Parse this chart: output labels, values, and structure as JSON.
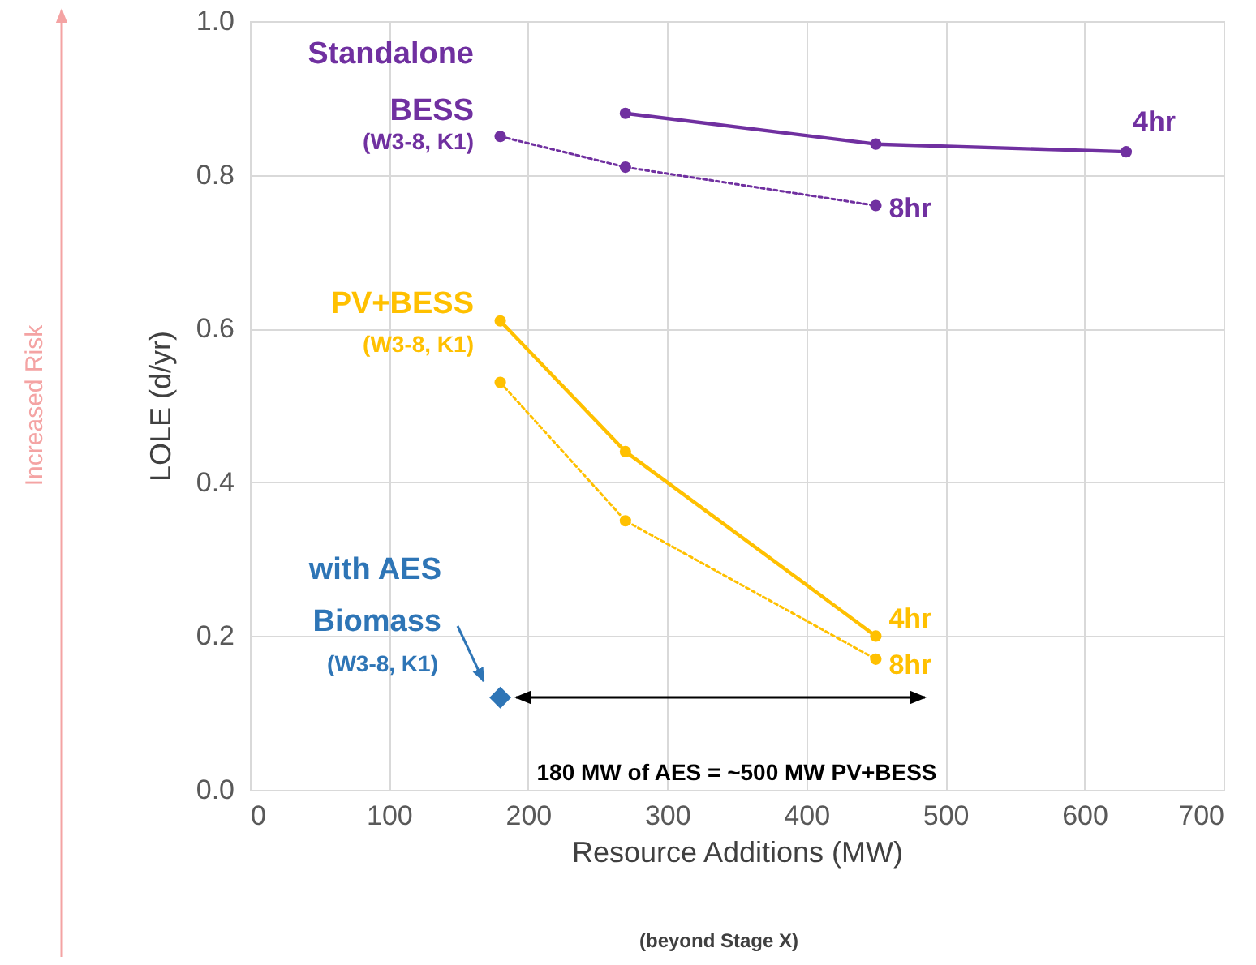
{
  "chart_data": {
    "type": "line",
    "xlabel": "Resource Additions (MW)",
    "ylabel": "LOLE (d/yr)",
    "xlim": [
      0,
      700
    ],
    "xticks": [
      0,
      100,
      200,
      300,
      400,
      500,
      600,
      700
    ],
    "ylim": [
      0,
      1
    ],
    "yticks": [
      {
        "value": 0,
        "label": "0.0"
      },
      {
        "value": 0.2,
        "label": "0.2"
      },
      {
        "value": 0.4,
        "label": "0.4"
      },
      {
        "value": 0.6,
        "label": "0.6"
      },
      {
        "value": 0.8,
        "label": "0.8"
      },
      {
        "value": 1,
        "label": "1.0"
      }
    ],
    "grid": true,
    "marker": "circle",
    "series": [
      {
        "name": "4hr",
        "color": "#7030a0",
        "x": [
          270,
          450,
          630
        ],
        "values": [
          0.88,
          0.84,
          0.83
        ],
        "line_style": "solid"
      },
      {
        "name": "8hr",
        "color": "#7030a0",
        "x": [
          180,
          270,
          450
        ],
        "values": [
          0.85,
          0.81,
          0.76
        ],
        "line_style": "dotted"
      },
      {
        "name": "4hr",
        "color": "#ffc000",
        "x": [
          180,
          270,
          450
        ],
        "values": [
          0.61,
          0.44,
          0.2
        ],
        "line_style": "solid"
      },
      {
        "name": "8hr",
        "color": "#ffc000",
        "x": [
          180,
          270,
          450
        ],
        "values": [
          0.53,
          0.35,
          0.17
        ],
        "line_style": "dotted"
      },
      {
        "type": "scatter",
        "color": "#2e75b6",
        "x": [
          180
        ],
        "values": [
          0.12
        ],
        "marker": "diamond"
      }
    ],
    "annotations": [
      "Standalone\nBESS",
      "(W3-8, K1)",
      "PV+BESS",
      "(W3-8, K1)",
      "with AES\nBiomass",
      "(W3-8, K1)",
      "180 MW of AES = ~500 MW PV+BESS",
      "(beyond Stage X)",
      "Increased Risk"
    ]
  }
}
